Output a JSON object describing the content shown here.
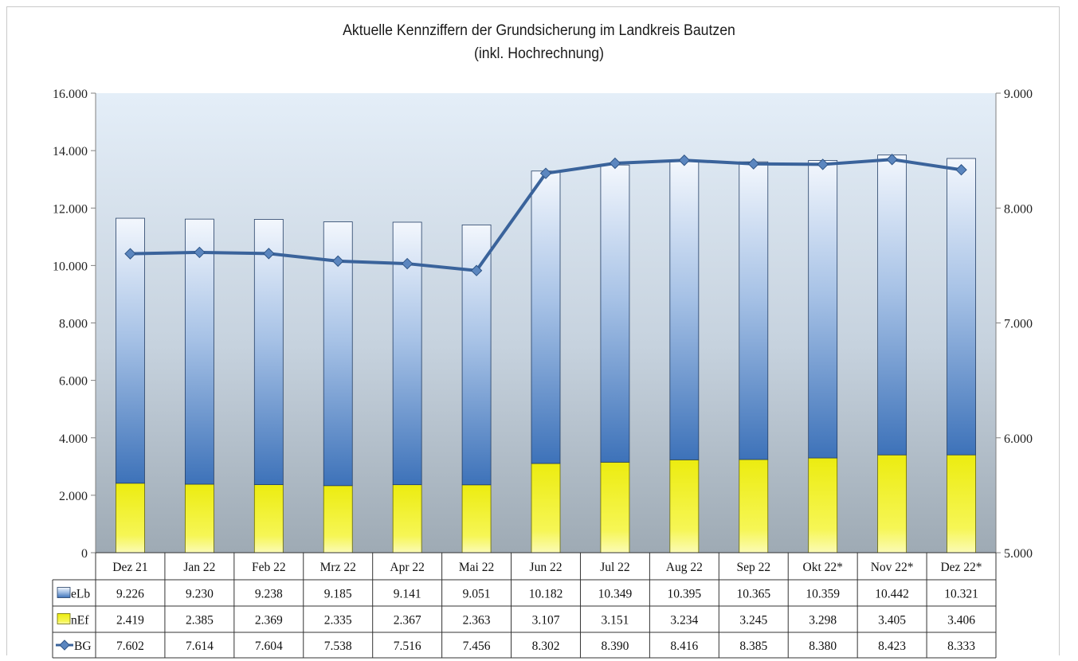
{
  "chart_data": {
    "type": "bar",
    "title": "Aktuelle Kennziffern der Grundsicherung im Landkreis Bautzen",
    "subtitle": "(inkl. Hochrechnung)",
    "categories": [
      "Dez 21",
      "Jan 22",
      "Feb 22",
      "Mrz 22",
      "Apr 22",
      "Mai 22",
      "Jun 22",
      "Jul 22",
      "Aug 22",
      "Sep 22",
      "Okt 22*",
      "Nov 22*",
      "Dez 22*"
    ],
    "stacked": true,
    "series": [
      {
        "name": "eLb",
        "type": "bar",
        "axis": "left",
        "color": "#4a7fc0",
        "values": [
          9226,
          9230,
          9238,
          9185,
          9141,
          9051,
          10182,
          10349,
          10395,
          10365,
          10359,
          10442,
          10321
        ],
        "labels": [
          "9.226",
          "9.230",
          "9.238",
          "9.185",
          "9.141",
          "9.051",
          "10.182",
          "10.349",
          "10.395",
          "10.365",
          "10.359",
          "10.442",
          "10.321"
        ]
      },
      {
        "name": "nEf",
        "type": "bar",
        "axis": "left",
        "color": "#e6e600",
        "values": [
          2419,
          2385,
          2369,
          2335,
          2367,
          2363,
          3107,
          3151,
          3234,
          3245,
          3298,
          3405,
          3406
        ],
        "labels": [
          "2.419",
          "2.385",
          "2.369",
          "2.335",
          "2.367",
          "2.363",
          "3.107",
          "3.151",
          "3.234",
          "3.245",
          "3.298",
          "3.405",
          "3.406"
        ]
      },
      {
        "name": "BG",
        "type": "line",
        "axis": "right",
        "color": "#3a639b",
        "values": [
          7602,
          7614,
          7604,
          7538,
          7516,
          7456,
          8302,
          8390,
          8416,
          8385,
          8380,
          8423,
          8333
        ],
        "labels": [
          "7.602",
          "7.614",
          "7.604",
          "7.538",
          "7.516",
          "7.456",
          "8.302",
          "8.390",
          "8.416",
          "8.385",
          "8.380",
          "8.423",
          "8.333"
        ]
      }
    ],
    "ylim": [
      0,
      16000
    ],
    "yticks": [
      0,
      2000,
      4000,
      6000,
      8000,
      10000,
      12000,
      14000,
      16000
    ],
    "ytick_labels": [
      "0",
      "2.000",
      "4.000",
      "6.000",
      "8.000",
      "10.000",
      "12.000",
      "14.000",
      "16.000"
    ],
    "y2lim": [
      5000,
      9000
    ],
    "y2ticks": [
      5000,
      6000,
      7000,
      8000,
      9000
    ],
    "y2tick_labels": [
      "5.000",
      "6.000",
      "7.000",
      "8.000",
      "9.000"
    ],
    "legend": "data-table"
  }
}
